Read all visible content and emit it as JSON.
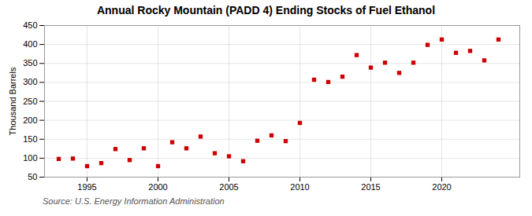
{
  "chart_data": {
    "type": "scatter",
    "title": "Annual Rocky Mountain (PADD 4) Ending Stocks of Fuel Ethanol",
    "ylabel": "Thousand Barrels",
    "source": "Source: U.S. Energy Information Administration",
    "x": [
      1993,
      1994,
      1995,
      1996,
      1997,
      1998,
      1999,
      2000,
      2001,
      2002,
      2003,
      2004,
      2005,
      2006,
      2007,
      2008,
      2009,
      2010,
      2011,
      2012,
      2013,
      2014,
      2015,
      2016,
      2017,
      2018,
      2019,
      2020,
      2021,
      2022,
      2023,
      2024
    ],
    "values": [
      98,
      99,
      79,
      87,
      124,
      95,
      126,
      79,
      142,
      126,
      157,
      113,
      105,
      92,
      146,
      160,
      145,
      193,
      307,
      301,
      315,
      372,
      339,
      352,
      325,
      352,
      399,
      413,
      378,
      383,
      358,
      413
    ],
    "color": "#cc0000",
    "marker": "square",
    "xlim": [
      1992.0,
      2025.5
    ],
    "xticks": [
      1995,
      2000,
      2005,
      2010,
      2015,
      2020
    ],
    "ylim": [
      50,
      450
    ],
    "yticks": [
      50,
      100,
      150,
      200,
      250,
      300,
      350,
      400,
      450
    ],
    "grid": true
  }
}
